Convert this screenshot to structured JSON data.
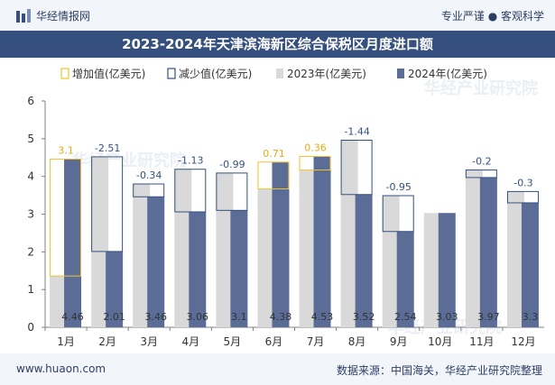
{
  "header": {
    "brand": "华经情报网",
    "slogan": "专业严谨 ● 客观科学",
    "title": "2023-2024年天津滨海新区综合保税区月度进口额"
  },
  "footer": {
    "website": "www.huaon.com",
    "source": "数据来源：中国海关，华经产业研究院整理"
  },
  "watermark": "华经产业研究院",
  "colors": {
    "increase": "#f2c12e",
    "decrease": "#35507e",
    "bar2023": "#d9d9d9",
    "bar2024": "#5b6d97",
    "axis": "#808080"
  },
  "chart_data": {
    "type": "bar",
    "categories": [
      "1月",
      "2月",
      "3月",
      "4月",
      "5月",
      "6月",
      "7月",
      "8月",
      "9月",
      "10月",
      "11月",
      "12月"
    ],
    "series": [
      {
        "name": "2023年(亿美元)",
        "values": [
          1.36,
          4.52,
          3.8,
          4.19,
          4.09,
          3.67,
          4.17,
          4.96,
          3.49,
          3.03,
          4.17,
          3.6
        ]
      },
      {
        "name": "2024年(亿美元)",
        "values": [
          4.46,
          2.01,
          3.46,
          3.06,
          3.1,
          4.38,
          4.53,
          3.52,
          2.54,
          3.03,
          3.97,
          3.3
        ]
      }
    ],
    "change": [
      3.1,
      -2.51,
      -0.34,
      -1.13,
      -0.99,
      0.71,
      0.36,
      -1.44,
      -0.95,
      null,
      -0.2,
      -0.3
    ],
    "change_labels": [
      "3.1",
      "-2.51",
      "-0.34",
      "-1.13",
      "-0.99",
      "0.71",
      "0.36",
      "-1.44",
      "-0.95",
      "",
      "-0.2",
      "-0.3"
    ],
    "value_labels_2024": [
      "4.46",
      "2.01",
      "3.46",
      "3.06",
      "3.1",
      "4.38",
      "4.53",
      "3.52",
      "2.54",
      "3.03",
      "3.97",
      "3.3"
    ],
    "legend": [
      "增加值(亿美元)",
      "减少值(亿美元)",
      "2023年(亿美元)",
      "2024年(亿美元)"
    ],
    "yticks": [
      "0",
      "1",
      "2",
      "3",
      "4",
      "5",
      "6"
    ],
    "ylim": [
      0,
      6
    ],
    "legend_position": "top",
    "grid": false
  }
}
